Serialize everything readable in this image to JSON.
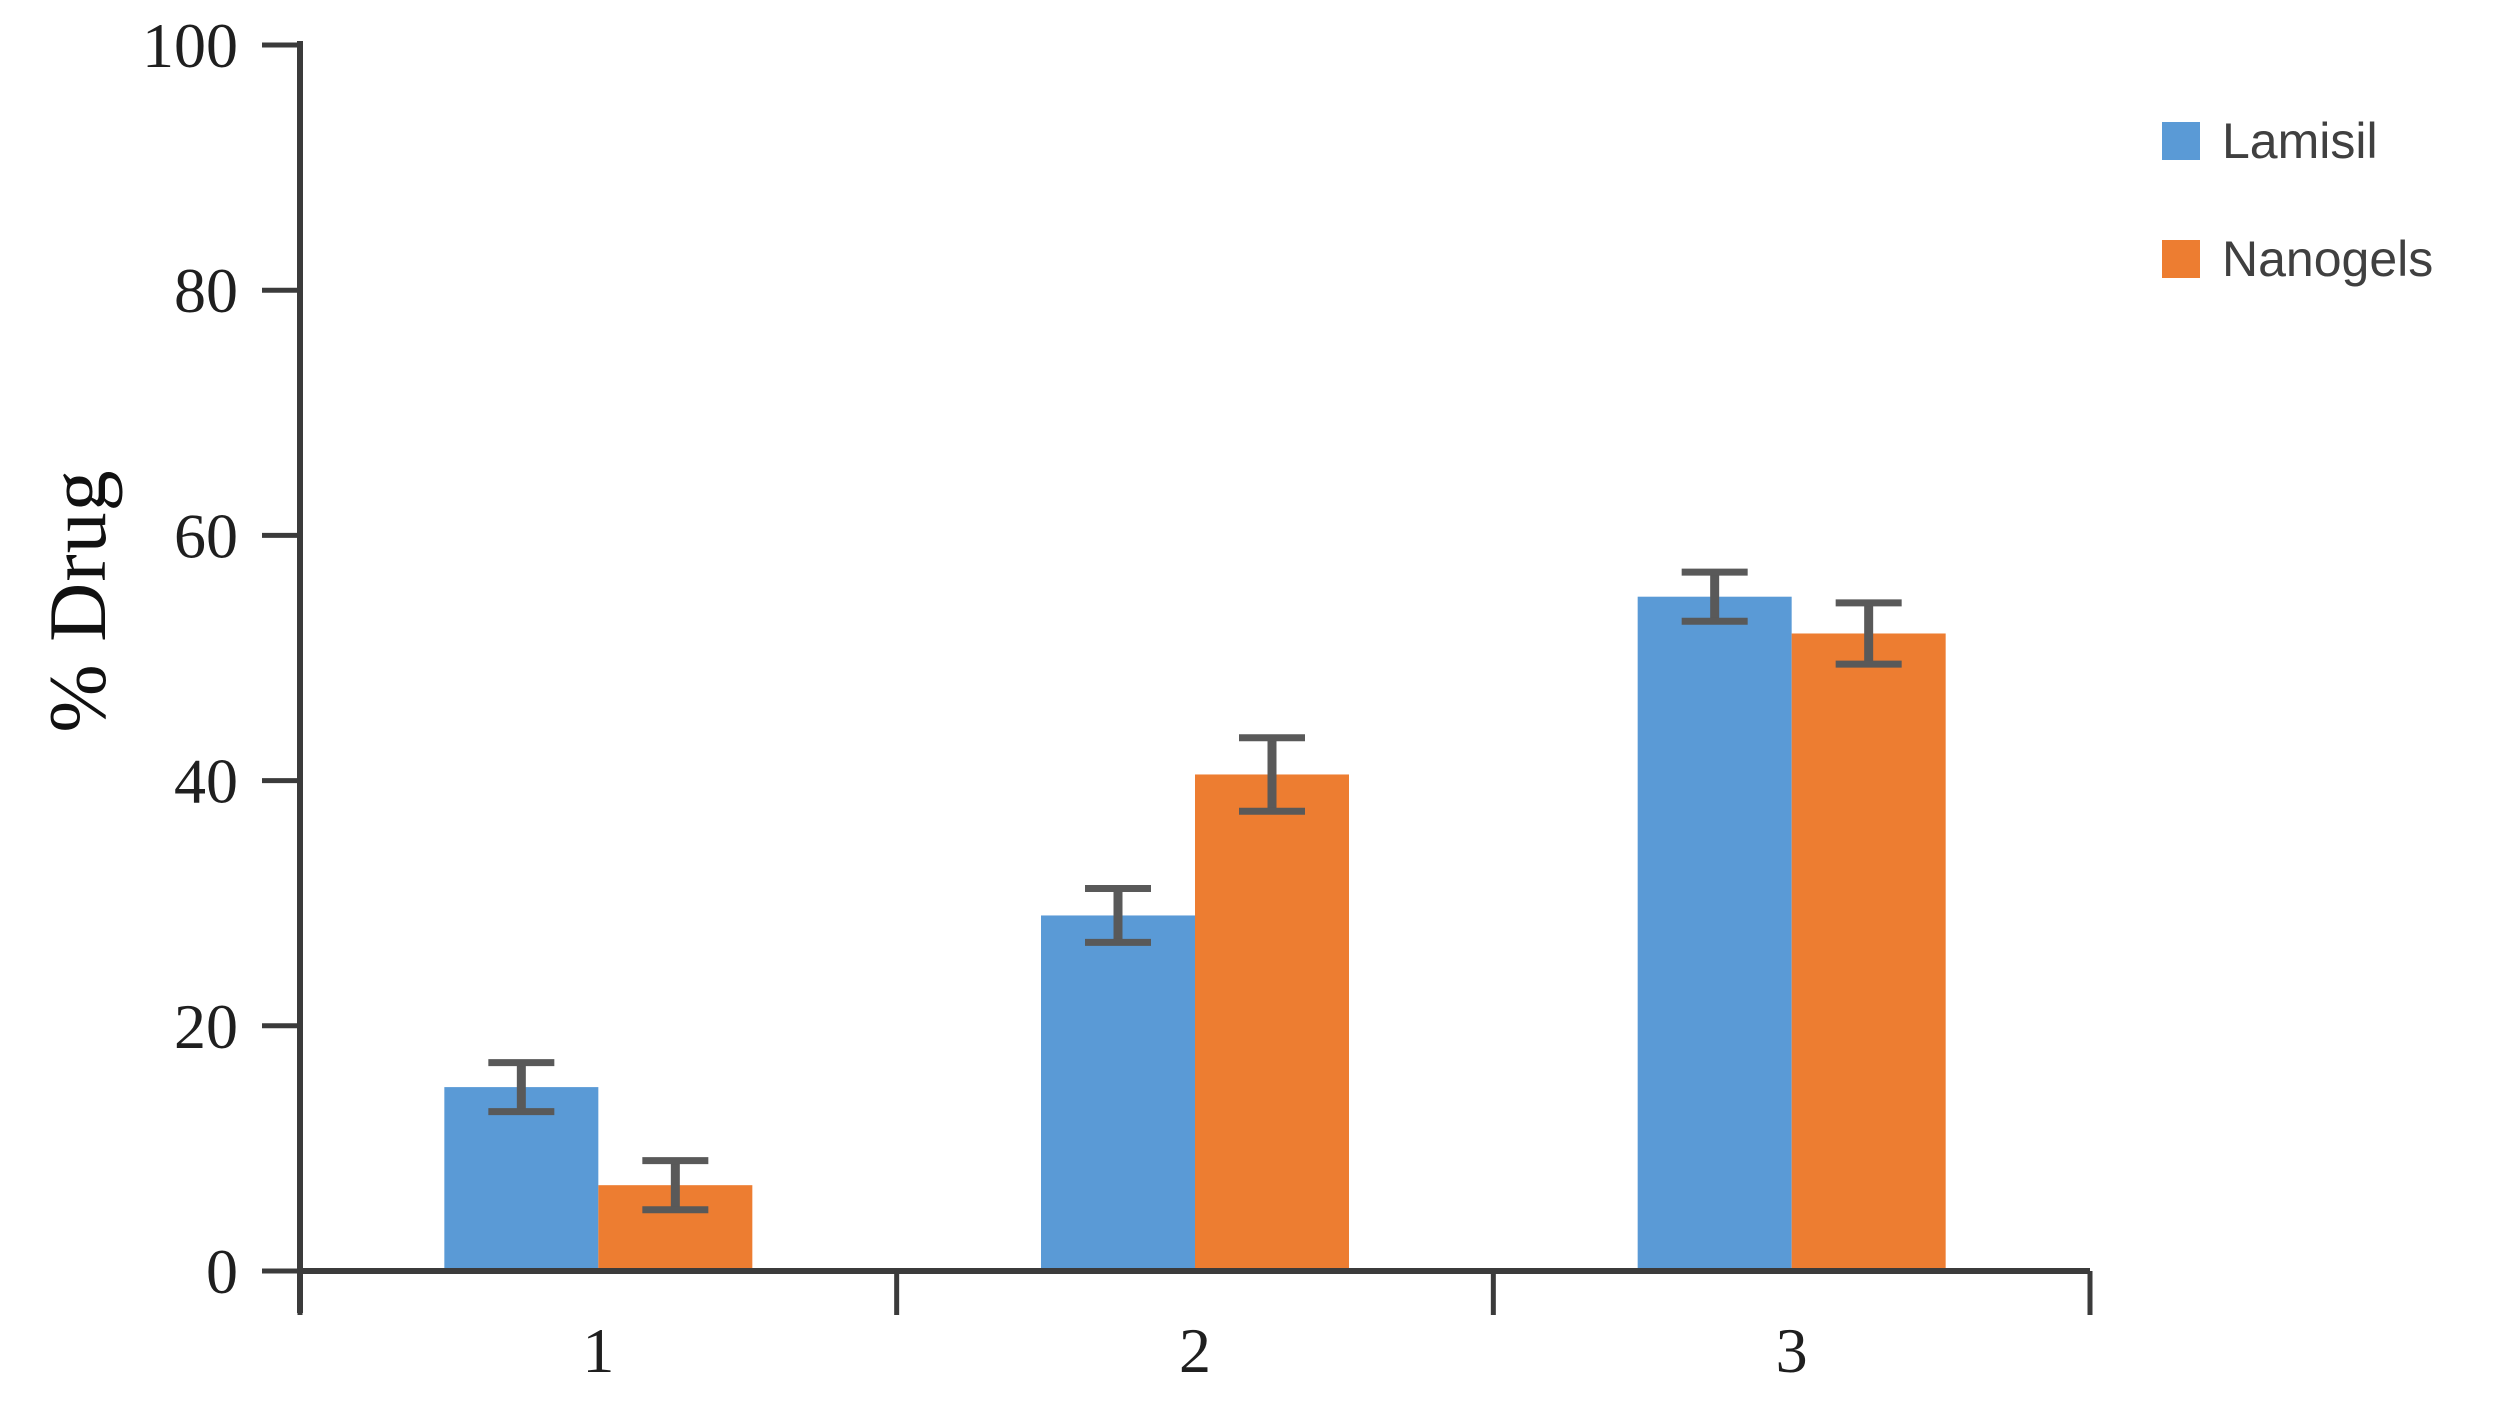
{
  "figure": {
    "background_color": "#ffffff",
    "axis_color": "#3b3b3b",
    "tick_label_color": "#1f1f1f",
    "legend_text_color": "#404040",
    "error_bar_color": "#595959"
  },
  "chart_data": {
    "type": "bar",
    "title": "",
    "xlabel": "",
    "ylabel": "% Drug",
    "categories": [
      "1",
      "2",
      "3"
    ],
    "series": [
      {
        "name": "Lamisil",
        "color": "#5A9AD6",
        "values": [
          15,
          29,
          55
        ],
        "errors": [
          2,
          2.2,
          2
        ]
      },
      {
        "name": "Nanogels",
        "color": "#ED7D31",
        "values": [
          7,
          40.5,
          52
        ],
        "errors": [
          2,
          3,
          2.5
        ]
      }
    ],
    "ylim": [
      0,
      100
    ],
    "yticks": [
      0,
      20,
      40,
      60,
      80,
      100
    ],
    "grid": false,
    "legend_position": "top-right",
    "error_bars": true
  }
}
